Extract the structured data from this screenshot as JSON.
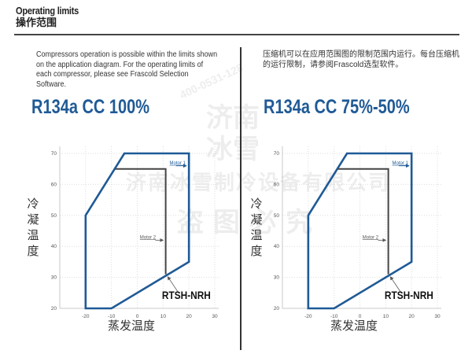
{
  "header": {
    "title_en": "Operating limits",
    "title_cn": "操作范围"
  },
  "intro": {
    "en": "Compressors operation is possible within the limits shown on the application diagram. For the operating limits of each compressor, please see Frascold Selection Software.",
    "cn": "压缩机可以在应用范围图的限制范围内运行。每台压缩机的运行限制，请参阅Frascold选型软件。"
  },
  "watermark": {
    "line1": "济南冰雪制冷设备有限公司",
    "line2": "盗图必究",
    "phone": "400-0531-128",
    "seal": "济南冰雪"
  },
  "colors": {
    "envelope": "#1f5a96",
    "motor2": "#444444",
    "title": "#1f5a96"
  },
  "chart_data": [
    {
      "type": "line",
      "title": "R134a CC 100%",
      "xlabel": "蒸发温度",
      "ylabel": "冷凝温度",
      "xlim": [
        -30,
        30
      ],
      "ylim": [
        20,
        70
      ],
      "xticks": [
        -20,
        -10,
        0,
        10,
        20,
        30
      ],
      "yticks": [
        20,
        30,
        40,
        50,
        60,
        70
      ],
      "grid": true,
      "series": [
        {
          "name": "Motor 1",
          "color": "#1f5a96",
          "closed": true,
          "points": [
            [
              -20,
              20
            ],
            [
              -10,
              20
            ],
            [
              20,
              35
            ],
            [
              20,
              70
            ],
            [
              -5,
              70
            ],
            [
              -20,
              50
            ]
          ]
        },
        {
          "name": "Motor 2",
          "color": "#444444",
          "closed": false,
          "points": [
            [
              -8.5,
              65
            ],
            [
              11,
              65
            ],
            [
              11,
              31
            ]
          ]
        }
      ],
      "annotation": "RTSH-NRH"
    },
    {
      "type": "line",
      "title": "R134a CC 75%-50%",
      "xlabel": "蒸发温度",
      "ylabel": "冷凝温度",
      "xlim": [
        -30,
        30
      ],
      "ylim": [
        20,
        70
      ],
      "xticks": [
        -20,
        -10,
        0,
        10,
        20,
        30
      ],
      "yticks": [
        20,
        30,
        40,
        50,
        60,
        70
      ],
      "grid": true,
      "series": [
        {
          "name": "Motor 1",
          "color": "#1f5a96",
          "closed": true,
          "points": [
            [
              -20,
              20
            ],
            [
              -10,
              20
            ],
            [
              20,
              35
            ],
            [
              20,
              70
            ],
            [
              -5,
              70
            ],
            [
              -20,
              50
            ]
          ]
        },
        {
          "name": "Motor 2",
          "color": "#444444",
          "closed": false,
          "points": [
            [
              -8.5,
              65
            ],
            [
              11,
              65
            ],
            [
              11,
              31
            ]
          ]
        }
      ],
      "annotation": "RTSH-NRH"
    }
  ]
}
